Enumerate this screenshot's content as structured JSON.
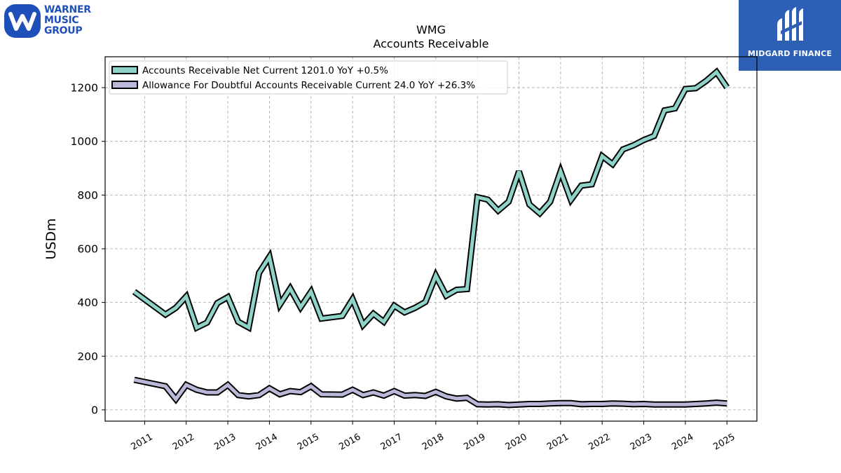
{
  "logos": {
    "left": {
      "lines": [
        "WARNER",
        "MUSIC",
        "GROUP"
      ],
      "color": "#1f4fb8"
    },
    "right": {
      "text": "MIDGARD FINANCE",
      "background": "#2d5fb5"
    }
  },
  "chart_data": {
    "type": "line",
    "title": "WMG",
    "subtitle": "Accounts Receivable",
    "ylabel": "USDm",
    "xlabel": "",
    "ylim": [
      -42,
      1315
    ],
    "xlim": [
      2010.05,
      2025.72
    ],
    "yticks": [
      0,
      200,
      400,
      600,
      800,
      1000,
      1200
    ],
    "xticks": [
      "2011",
      "2012",
      "2013",
      "2014",
      "2015",
      "2016",
      "2017",
      "2018",
      "2019",
      "2020",
      "2021",
      "2022",
      "2023",
      "2024",
      "2025"
    ],
    "grid": true,
    "legend_position": "top-left",
    "series": [
      {
        "name": "Accounts Receivable Net Current",
        "legend_label": "Accounts Receivable Net Current  1201.0 YoY +0.5%",
        "color": "#8fd3c8",
        "points": [
          [
            2010.75,
            440
          ],
          [
            2011.5,
            355
          ],
          [
            2011.75,
            380
          ],
          [
            2012.0,
            422
          ],
          [
            2012.25,
            306
          ],
          [
            2012.5,
            325
          ],
          [
            2012.75,
            398
          ],
          [
            2013.0,
            420
          ],
          [
            2013.25,
            328
          ],
          [
            2013.5,
            307
          ],
          [
            2013.75,
            510
          ],
          [
            2014.0,
            570
          ],
          [
            2014.25,
            392
          ],
          [
            2014.5,
            452
          ],
          [
            2014.75,
            382
          ],
          [
            2015.0,
            440
          ],
          [
            2015.25,
            340
          ],
          [
            2015.75,
            350
          ],
          [
            2016.0,
            412
          ],
          [
            2016.25,
            316
          ],
          [
            2016.5,
            358
          ],
          [
            2016.75,
            328
          ],
          [
            2017.0,
            388
          ],
          [
            2017.25,
            363
          ],
          [
            2017.5,
            380
          ],
          [
            2017.75,
            402
          ],
          [
            2018.0,
            500
          ],
          [
            2018.25,
            425
          ],
          [
            2018.5,
            447
          ],
          [
            2018.75,
            450
          ],
          [
            2019.0,
            792
          ],
          [
            2019.25,
            783
          ],
          [
            2019.5,
            742
          ],
          [
            2019.75,
            775
          ],
          [
            2020.0,
            888
          ],
          [
            2020.25,
            765
          ],
          [
            2020.5,
            732
          ],
          [
            2020.75,
            775
          ],
          [
            2021.0,
            888
          ],
          [
            2021.25,
            782
          ],
          [
            2021.5,
            835
          ],
          [
            2021.75,
            840
          ],
          [
            2022.0,
            945
          ],
          [
            2022.25,
            915
          ],
          [
            2022.5,
            970
          ],
          [
            2022.75,
            985
          ],
          [
            2023.0,
            1005
          ],
          [
            2023.25,
            1020
          ],
          [
            2023.5,
            1115
          ],
          [
            2023.75,
            1123
          ],
          [
            2024.0,
            1195
          ],
          [
            2024.25,
            1198
          ],
          [
            2024.5,
            1225
          ],
          [
            2024.75,
            1258
          ],
          [
            2025.0,
            1201
          ]
        ]
      },
      {
        "name": "Allowance For Doubtful Accounts Receivable Current",
        "legend_label": "Allowance For Doubtful Accounts Receivable Current  24.0 YoY +26.3%",
        "color": "#b9b8d9",
        "points": [
          [
            2010.75,
            112
          ],
          [
            2011.5,
            88
          ],
          [
            2011.75,
            40
          ],
          [
            2012.0,
            93
          ],
          [
            2012.25,
            75
          ],
          [
            2012.5,
            65
          ],
          [
            2012.75,
            65
          ],
          [
            2013.0,
            93
          ],
          [
            2013.25,
            55
          ],
          [
            2013.5,
            50
          ],
          [
            2013.75,
            55
          ],
          [
            2014.0,
            80
          ],
          [
            2014.25,
            58
          ],
          [
            2014.5,
            70
          ],
          [
            2014.75,
            66
          ],
          [
            2015.0,
            88
          ],
          [
            2015.25,
            58
          ],
          [
            2015.75,
            57
          ],
          [
            2016.0,
            75
          ],
          [
            2016.25,
            55
          ],
          [
            2016.5,
            65
          ],
          [
            2016.75,
            53
          ],
          [
            2017.0,
            70
          ],
          [
            2017.25,
            53
          ],
          [
            2017.5,
            55
          ],
          [
            2017.75,
            52
          ],
          [
            2018.0,
            67
          ],
          [
            2018.25,
            50
          ],
          [
            2018.5,
            42
          ],
          [
            2018.75,
            45
          ],
          [
            2019.0,
            21
          ],
          [
            2019.25,
            20
          ],
          [
            2019.5,
            21
          ],
          [
            2019.75,
            18
          ],
          [
            2020.0,
            20
          ],
          [
            2020.25,
            22
          ],
          [
            2020.5,
            22
          ],
          [
            2020.75,
            24
          ],
          [
            2021.0,
            25
          ],
          [
            2021.25,
            25
          ],
          [
            2021.5,
            21
          ],
          [
            2021.75,
            22
          ],
          [
            2022.0,
            22
          ],
          [
            2022.25,
            24
          ],
          [
            2022.5,
            23
          ],
          [
            2022.75,
            21
          ],
          [
            2023.0,
            22
          ],
          [
            2023.25,
            20
          ],
          [
            2023.5,
            20
          ],
          [
            2023.75,
            20
          ],
          [
            2024.0,
            20
          ],
          [
            2024.25,
            22
          ],
          [
            2024.5,
            24
          ],
          [
            2024.75,
            27
          ],
          [
            2025.0,
            24
          ]
        ]
      }
    ]
  }
}
